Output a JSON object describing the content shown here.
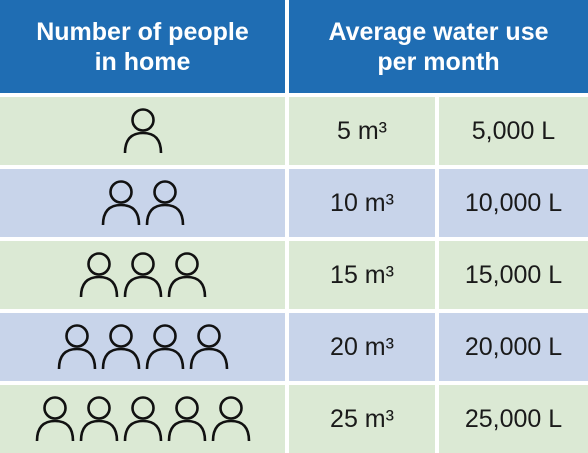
{
  "header": {
    "col1": "Number of people in home",
    "col2": "Average water use per month"
  },
  "rows": [
    {
      "people": 1,
      "cubic": "5 m³",
      "litres": "5,000 L"
    },
    {
      "people": 2,
      "cubic": "10 m³",
      "litres": "10,000 L"
    },
    {
      "people": 3,
      "cubic": "15 m³",
      "litres": "15,000 L"
    },
    {
      "people": 4,
      "cubic": "20 m³",
      "litres": "20,000 L"
    },
    {
      "people": 5,
      "cubic": "25 m³",
      "litres": "25,000 L"
    }
  ]
}
